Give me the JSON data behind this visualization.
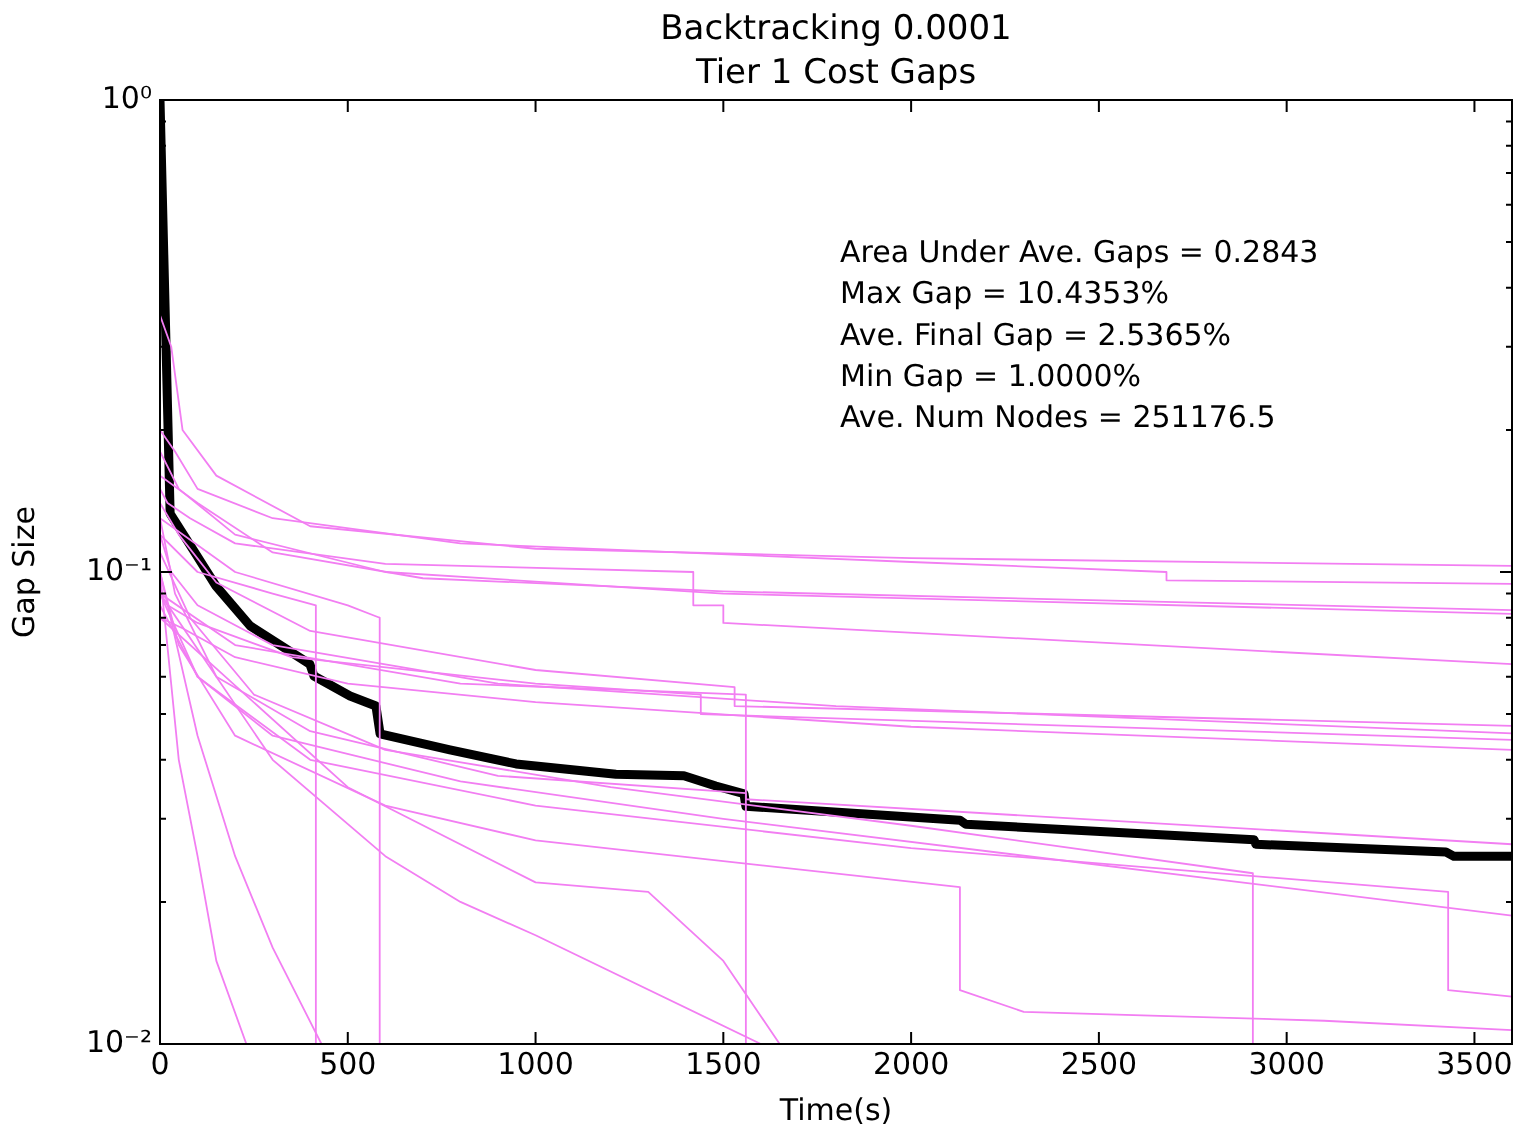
{
  "chart_data": {
    "type": "line",
    "title": "Backtracking 0.0001",
    "subtitle": "Tier 1 Cost Gaps",
    "xlabel": "Time(s)",
    "ylabel": "Gap Size",
    "log": "y",
    "grid": false,
    "legend": false,
    "marker": "none",
    "line_style": "solid",
    "xlim": [
      0,
      3600
    ],
    "xticks": [
      0,
      500,
      1000,
      1500,
      2000,
      2500,
      3000,
      3500
    ],
    "ylim": [
      0.01,
      1
    ],
    "yticks": [
      {
        "value": 0.01,
        "label": "10⁻²"
      },
      {
        "value": 0.02,
        "label": null
      },
      {
        "value": 0.03,
        "label": null
      },
      {
        "value": 0.04,
        "label": null
      },
      {
        "value": 0.05,
        "label": null
      },
      {
        "value": 0.06,
        "label": null
      },
      {
        "value": 0.07,
        "label": null
      },
      {
        "value": 0.08,
        "label": null
      },
      {
        "value": 0.09,
        "label": null
      },
      {
        "value": 0.1,
        "label": "10⁻¹"
      },
      {
        "value": 0.2,
        "label": null
      },
      {
        "value": 0.3,
        "label": null
      },
      {
        "value": 0.4,
        "label": null
      },
      {
        "value": 0.5,
        "label": null
      },
      {
        "value": 0.6,
        "label": null
      },
      {
        "value": 0.7,
        "label": null
      },
      {
        "value": 0.8,
        "label": null
      },
      {
        "value": 0.9,
        "label": null
      },
      {
        "value": 1,
        "label": "10⁰"
      }
    ],
    "annotations": [
      "Area Under Ave. Gaps = 0.2843",
      "Max Gap = 10.4353%",
      "Ave. Final Gap = 2.5365%",
      "Min Gap = 1.0000%",
      "Ave. Num Nodes = 251176.5"
    ],
    "series": [
      {
        "color": "#f27ef2",
        "x": [
          0,
          30,
          60,
          150,
          400,
          1000,
          2000,
          3600
        ],
        "values": [
          0.35,
          0.3,
          0.2,
          0.16,
          0.125,
          0.112,
          0.107,
          0.103
        ]
      },
      {
        "color": "#f27ef2",
        "x": [
          0,
          40,
          100,
          300,
          800,
          2000,
          2680,
          2680,
          3600
        ],
        "values": [
          0.2,
          0.18,
          0.15,
          0.13,
          0.115,
          0.105,
          0.1,
          0.096,
          0.0944
        ]
      },
      {
        "color": "#f27ef2",
        "x": [
          0,
          20,
          80,
          200,
          600,
          1420,
          1420,
          1500,
          1500,
          3600
        ],
        "values": [
          0.15,
          0.14,
          0.13,
          0.115,
          0.104,
          0.1,
          0.085,
          0.085,
          0.078,
          0.0638
        ]
      },
      {
        "color": "#f27ef2",
        "x": [
          0,
          100,
          300,
          700,
          1500,
          3600
        ],
        "values": [
          0.16,
          0.14,
          0.11,
          0.097,
          0.091,
          0.083
        ]
      },
      {
        "color": "#f27ef2",
        "x": [
          0,
          50,
          200,
          600,
          1500,
          3600
        ],
        "values": [
          0.18,
          0.15,
          0.12,
          0.1,
          0.09,
          0.0815
        ]
      },
      {
        "color": "#f27ef2",
        "x": [
          0,
          50,
          150,
          400,
          1000,
          1530,
          1530,
          3600
        ],
        "values": [
          0.14,
          0.12,
          0.095,
          0.075,
          0.062,
          0.057,
          0.052,
          0.0472
        ]
      },
      {
        "color": "#f27ef2",
        "x": [
          0,
          30,
          100,
          300,
          900,
          1800,
          3600
        ],
        "values": [
          0.12,
          0.1,
          0.085,
          0.07,
          0.058,
          0.052,
          0.0455
        ]
      },
      {
        "color": "#f27ef2",
        "x": [
          0,
          20,
          100,
          350,
          1000,
          1440,
          1440,
          3600
        ],
        "values": [
          0.09,
          0.085,
          0.078,
          0.066,
          0.058,
          0.055,
          0.05,
          0.0441
        ]
      },
      {
        "color": "#f27ef2",
        "x": [
          0,
          60,
          200,
          500,
          1000,
          2000,
          3600
        ],
        "values": [
          0.08,
          0.076,
          0.066,
          0.058,
          0.053,
          0.047,
          0.042
        ]
      },
      {
        "color": "#f27ef2",
        "x": [
          0,
          40,
          150,
          400,
          900,
          1560,
          1560,
          3600
        ],
        "values": [
          0.13,
          0.09,
          0.06,
          0.046,
          0.037,
          0.034,
          0.033,
          0.0265
        ]
      },
      {
        "color": "#f27ef2",
        "x": [
          0,
          80,
          250,
          600,
          1200,
          2000,
          2910,
          2910
        ],
        "values": [
          0.11,
          0.08,
          0.055,
          0.042,
          0.035,
          0.029,
          0.023,
          0.01
        ]
      },
      {
        "color": "#f27ef2",
        "x": [
          0,
          100,
          300,
          800,
          1500,
          3600
        ],
        "values": [
          0.09,
          0.06,
          0.045,
          0.036,
          0.03,
          0.0187
        ]
      },
      {
        "color": "#f27ef2",
        "x": [
          0,
          50,
          200,
          600,
          1000,
          2130,
          2130,
          2300,
          3100,
          3600
        ],
        "values": [
          0.1,
          0.07,
          0.045,
          0.032,
          0.027,
          0.0215,
          0.013,
          0.0117,
          0.0112,
          0.0107
        ]
      },
      {
        "color": "#f27ef2",
        "x": [
          0,
          100,
          400,
          1000,
          2000,
          3430,
          3430,
          3600
        ],
        "values": [
          0.085,
          0.06,
          0.04,
          0.032,
          0.026,
          0.021,
          0.013,
          0.0126
        ]
      },
      {
        "color": "#f27ef2",
        "x": [
          0,
          100,
          300,
          415,
          415
        ],
        "values": [
          0.12,
          0.1,
          0.09,
          0.085,
          0.01
        ]
      },
      {
        "color": "#f27ef2",
        "x": [
          0,
          200,
          500,
          585,
          585
        ],
        "values": [
          0.13,
          0.1,
          0.085,
          0.08,
          0.01
        ]
      },
      {
        "color": "#f27ef2",
        "x": [
          0,
          200,
          800,
          1560,
          1560
        ],
        "values": [
          0.09,
          0.07,
          0.058,
          0.055,
          0.01
        ]
      },
      {
        "color": "#f27ef2",
        "x": [
          0,
          50,
          100,
          150,
          230
        ],
        "values": [
          0.1,
          0.04,
          0.025,
          0.015,
          0.01
        ]
      },
      {
        "color": "#f27ef2",
        "x": [
          0,
          100,
          200,
          300,
          430
        ],
        "values": [
          0.1,
          0.045,
          0.025,
          0.016,
          0.01
        ]
      },
      {
        "color": "#f27ef2",
        "x": [
          0,
          300,
          600,
          800,
          1000,
          1600
        ],
        "values": [
          0.09,
          0.04,
          0.025,
          0.02,
          0.017,
          0.01
        ]
      },
      {
        "color": "#f27ef2",
        "x": [
          0,
          500,
          1000,
          1300,
          1500,
          1650
        ],
        "values": [
          0.08,
          0.035,
          0.022,
          0.021,
          0.015,
          0.01
        ]
      },
      {
        "color": "#000000",
        "x": [
          0,
          27,
          96,
          149,
          240,
          399,
          410,
          506,
          575,
          586,
          772,
          948,
          1214,
          1395,
          1480,
          1555,
          1560,
          2130,
          2146,
          2913,
          2918,
          3424,
          3445,
          3600
        ],
        "values": [
          1,
          0.133,
          0.109,
          0.0934,
          0.0769,
          0.0638,
          0.0602,
          0.0546,
          0.052,
          0.0454,
          0.042,
          0.0392,
          0.0373,
          0.037,
          0.0352,
          0.0339,
          0.0319,
          0.0298,
          0.0292,
          0.0271,
          0.0265,
          0.0255,
          0.025,
          0.025
        ]
      }
    ]
  }
}
